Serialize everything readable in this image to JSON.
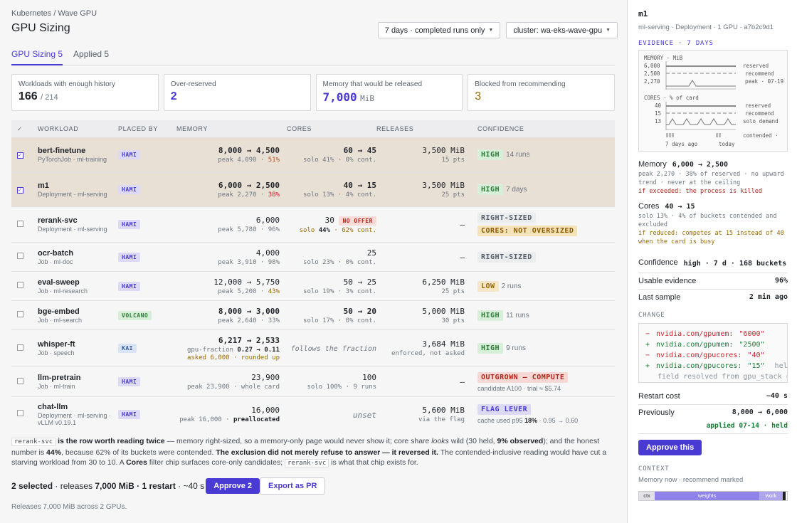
{
  "breadcrumb": "Kubernetes / Wave GPU",
  "page_title": "GPU Sizing",
  "filters": {
    "range": "7 days · completed runs only",
    "cluster": "cluster: wa-eks-wave-gpu"
  },
  "tabs": [
    {
      "label": "GPU Sizing 5"
    },
    {
      "label": "Applied 5"
    }
  ],
  "cards": [
    {
      "label": "Workloads with enough history",
      "value": "166",
      "sub": "/ 214"
    },
    {
      "label": "Over-reserved",
      "value": "2"
    },
    {
      "label": "Memory that would be released",
      "value": "7,000",
      "sub": "MiB"
    },
    {
      "label": "Blocked from recommending",
      "value": "3"
    }
  ],
  "headers": {
    "check": "✓",
    "workload": "Workload",
    "placed": "Placed by",
    "memory": "Memory",
    "cores": "Cores",
    "releases": "Releases",
    "confidence": "Confidence"
  },
  "rows": [
    {
      "name": "bert-finetune",
      "sub": "PyTorchJob · ml-training",
      "placed": "HAMI",
      "mem": "8,000 → 4,500",
      "mem_peak": "peak 4,090",
      "mem_pct": "51%",
      "cores": "60 → 45",
      "cores_sub": "solo 41% · 0% cont.",
      "rel": "3,500 MiB",
      "rel_sub": "15 pts",
      "conf": "HIGH",
      "conf_note": "14 runs"
    },
    {
      "name": "m1",
      "sub": "Deployment · ml-serving",
      "placed": "HAMI",
      "mem": "6,000 → 2,500",
      "mem_peak": "peak 2,270",
      "mem_pct": "38%",
      "cores": "40 → 15",
      "cores_sub": "solo 13% · 4% cont.",
      "rel": "3,500 MiB",
      "rel_sub": "25 pts",
      "conf": "HIGH",
      "conf_note": "7 days"
    },
    {
      "name": "rerank-svc",
      "sub": "Deployment · ml-serving",
      "placed": "HAMI",
      "mem": "6,000",
      "mem_peak": "peak 5,780 · 96%",
      "cores": "30",
      "no_offer": "NO OFFER",
      "cores_solo": "solo",
      "cores_pct": "44%",
      "cores_cont": "· 62% cont.",
      "rel": "—",
      "conf": "RIGHT-SIZED",
      "conf2": "CORES: NOT OVERSIZED"
    },
    {
      "name": "ocr-batch",
      "sub": "Job · ml-doc",
      "placed": "HAMI",
      "mem": "4,000",
      "mem_peak": "peak 3,910 · 98%",
      "cores": "25",
      "cores_sub": "solo 23% · 0% cont.",
      "rel": "—",
      "conf": "RIGHT-SIZED"
    },
    {
      "name": "eval-sweep",
      "sub": "Job · ml-research",
      "placed": "HAMI",
      "mem": "12,000 → 5,750",
      "mem_peak": "peak 5,200",
      "mem_pct": "43%",
      "cores": "50 → 25",
      "cores_sub": "solo 19% · 3% cont.",
      "rel": "6,250 MiB",
      "rel_sub": "25 pts",
      "conf": "LOW",
      "conf_note": "2 runs"
    },
    {
      "name": "bge-embed",
      "sub": "Job · ml-search",
      "placed": "VOLCANO",
      "mem": "8,000 → 3,000",
      "mem_peak": "peak 2,640 · 33%",
      "cores": "50 → 20",
      "cores_sub": "solo 17% · 0% cont.",
      "rel": "5,000 MiB",
      "rel_sub": "30 pts",
      "conf": "HIGH",
      "conf_note": "11 runs"
    },
    {
      "name": "whisper-ft",
      "sub": "Job · speech",
      "placed": "KAI",
      "mem": "6,217 → 2,533",
      "mem_frac_label": "gpu-fraction",
      "mem_frac": "0.27 → 0.11",
      "mem_ask": "asked 6,000 · rounded up",
      "cores_italic": "follows the fraction",
      "rel": "3,684 MiB",
      "rel_sub": "enforced, not asked",
      "conf": "HIGH",
      "conf_note": "9 runs"
    },
    {
      "name": "llm-pretrain",
      "sub": "Job · ml-train",
      "placed": "HAMI",
      "mem": "23,900",
      "mem_peak": "peak 23,900 · whole card",
      "cores": "100",
      "cores_sub": "solo 100% · 9 runs",
      "rel": "—",
      "conf": "OUTGROWN — COMPUTE",
      "conf_sub": "candidate A100 · trial ≈ $5.74"
    },
    {
      "name": "chat-llm",
      "sub": "Deployment · ml-serving · vLLM v0.19.1",
      "placed": "HAMI",
      "mem": "16,000",
      "mem_peak": "peak 16,000 ·",
      "mem_prealloc": "preallocated",
      "cores_italic": "unset",
      "rel": "5,600 MiB",
      "rel_sub": "via the flag",
      "conf": "FLAG LEVER",
      "conf_sub_a": "cache used p95",
      "conf_sub_b": "18%",
      "conf_sub_c": "· 0.95 → 0.60"
    }
  ],
  "note": {
    "code1": "rerank-svc",
    "t1": "is the row worth reading twice",
    "t2": "— memory right-sized, so a memory-only page would never show it; core share",
    "looks": "looks",
    "t3": "wild (30 held,",
    "t4": "9% observed",
    "t5": "); and the honest number is",
    "t6": "44%",
    "t7": ", because 62% of its buckets were contended.",
    "t8": "The exclusion did not merely refuse to answer — it reversed it.",
    "t9": "The contended-inclusive reading would have cut a starving workload from 30 to 10. A",
    "t10": "Cores",
    "t11": "filter chip surfaces core-only candidates;",
    "code2": "rerank-svc",
    "t12": "is what that chip exists for."
  },
  "bottom": {
    "selected": "2 selected",
    "releases_prefix": "· releases",
    "releases": "7,000 MiB",
    "restart": "· 1 restart",
    "time": "· ~40 s",
    "approve": "Approve 2",
    "export": "Export as PR",
    "footer": "Releases 7,000 MiB across 2 GPUs."
  },
  "side": {
    "title": "m1",
    "sub": "ml-serving · Deployment · 1 GPU · a7b2c9d1",
    "evidence_h": "EVIDENCE · 7 DAYS",
    "ev": {
      "mem_label": "MEMORY · MiB",
      "mem_ticks": [
        "6,000",
        "2,500",
        "2,270"
      ],
      "mem_legend": [
        "reserved",
        "recommend",
        "peak · 07-19"
      ],
      "cores_label": "CORES · % of card",
      "cores_ticks": [
        "40",
        "15",
        "13"
      ],
      "cores_legend": [
        "reserved",
        "recommend",
        "solo demand"
      ],
      "contended": "contended ·",
      "x_labels": [
        "7 days ago",
        "today"
      ]
    },
    "memory_label": "Memory",
    "memory_val": "6,000 → 2,500",
    "memory_detail": "peak 2,270 · 38% of reserved · no upward trend · never at the ceiling",
    "memory_warn": "if exceeded: the process is killed",
    "cores_label": "Cores",
    "cores_val": "40 → 15",
    "cores_detail": "solo 13% · 4% of buckets contended and excluded",
    "cores_warn": "if reduced: competes at 15 instead of 40 when the card is busy",
    "confidence_label": "Confidence",
    "confidence_val": "high · 7 d · 168 buckets",
    "kv": [
      {
        "k": "Usable evidence",
        "v": "96%"
      },
      {
        "k": "Last sample",
        "v": "2 min ago"
      }
    ],
    "change_h": "CHANGE",
    "diff": [
      {
        "sign": "−",
        "key": "nvidia.com/gpumem:",
        "val": "\"6000\"",
        "type": "minus"
      },
      {
        "sign": "+",
        "key": "nvidia.com/gpumem:",
        "val": "\"2500\"",
        "type": "plus"
      },
      {
        "sign": "−",
        "key": "nvidia.com/gpucores:",
        "val": "\"40\"",
        "type": "minus"
      },
      {
        "sign": "+",
        "key": "nvidia.com/gpucores:",
        "val": "\"15\"",
        "type": "plus",
        "extra": "held"
      }
    ],
    "diff_note": "field resolved from gpu_stack =",
    "restart_k": "Restart cost",
    "restart_v": "~40 s",
    "prev_k": "Previously",
    "prev_v": "8,000 → 6,000",
    "prev_status": "applied 07-14 · held",
    "approve": "Approve this",
    "context_h": "CONTEXT",
    "context_sub": "Memory now · recommend marked",
    "ctx": [
      "ctx",
      "weights",
      "work"
    ]
  },
  "colors": {
    "accent": "#4a3ad4",
    "selected_row": "#e8dfd5",
    "high": "#2d7a36",
    "warn": "#b42318"
  }
}
